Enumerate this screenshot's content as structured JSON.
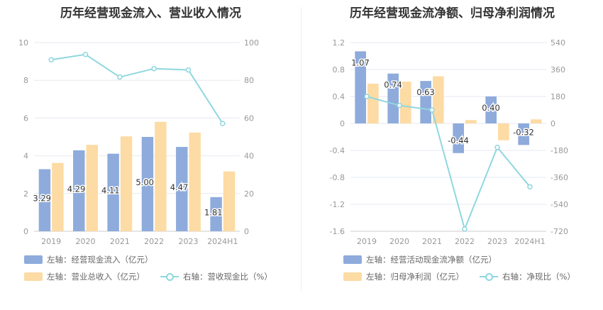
{
  "colors": {
    "bar_primary": "#8eabdc",
    "bar_secondary": "#fddba4",
    "line": "#8fd7df",
    "axis_text": "#999999",
    "grid": "#e6e9f0"
  },
  "chart_data": [
    {
      "type": "bar",
      "title": "历年经营现金流入、营业收入情况",
      "categories": [
        "2019",
        "2020",
        "2021",
        "2022",
        "2023",
        "2024H1"
      ],
      "left_axis": {
        "ylim": [
          0,
          10
        ],
        "ticks": [
          "0",
          "2",
          "4",
          "6",
          "8",
          "10"
        ]
      },
      "right_axis": {
        "ylim": [
          0,
          100
        ],
        "ticks": [
          "0",
          "20",
          "40",
          "60",
          "80",
          "100"
        ]
      },
      "series": [
        {
          "name": "左轴：经营现金流入（亿元）",
          "kind": "bar",
          "axis": "left",
          "values": [
            3.29,
            4.29,
            4.11,
            5.0,
            4.47,
            1.81
          ],
          "labels": [
            "3.29",
            "4.29",
            "4.11",
            "5.00",
            "4.47",
            "1.81"
          ]
        },
        {
          "name": "左轴：营业总收入（亿元）",
          "kind": "bar",
          "axis": "left",
          "values": [
            3.62,
            4.58,
            5.03,
            5.8,
            5.23,
            3.17
          ]
        },
        {
          "name": "右轴：营收现金比（%）",
          "kind": "line",
          "axis": "right",
          "values": [
            90.9,
            93.7,
            81.7,
            86.2,
            85.5,
            57.1
          ]
        }
      ]
    },
    {
      "type": "bar",
      "title": "历年经营现金流净额、归母净利润情况",
      "categories": [
        "2019",
        "2020",
        "2021",
        "2022",
        "2023",
        "2024H1"
      ],
      "left_axis": {
        "ylim": [
          -1.6,
          1.2
        ],
        "ticks": [
          "-1.6",
          "-1.2",
          "-0.8",
          "-0.4",
          "0",
          "0.4",
          "0.8",
          "1.2"
        ]
      },
      "right_axis": {
        "ylim": [
          -720,
          540
        ],
        "ticks": [
          "-720",
          "-540",
          "-360",
          "-180",
          "0",
          "180",
          "360",
          "540"
        ]
      },
      "series": [
        {
          "name": "左轴：经营活动现金流净额（亿元）",
          "kind": "bar",
          "axis": "left",
          "values": [
            1.07,
            0.74,
            0.63,
            -0.44,
            0.4,
            -0.32
          ],
          "labels": [
            "1.07",
            "0.74",
            "0.63",
            "-0.44",
            "0.40",
            "-0.32"
          ]
        },
        {
          "name": "左轴：归母净利润（亿元）",
          "kind": "bar",
          "axis": "left",
          "values": [
            0.59,
            0.62,
            0.7,
            0.05,
            -0.25,
            0.06
          ]
        },
        {
          "name": "右轴：净现比（%）",
          "kind": "line",
          "axis": "right",
          "values": [
            180,
            120,
            90,
            -705,
            -160,
            -423
          ]
        }
      ]
    }
  ]
}
